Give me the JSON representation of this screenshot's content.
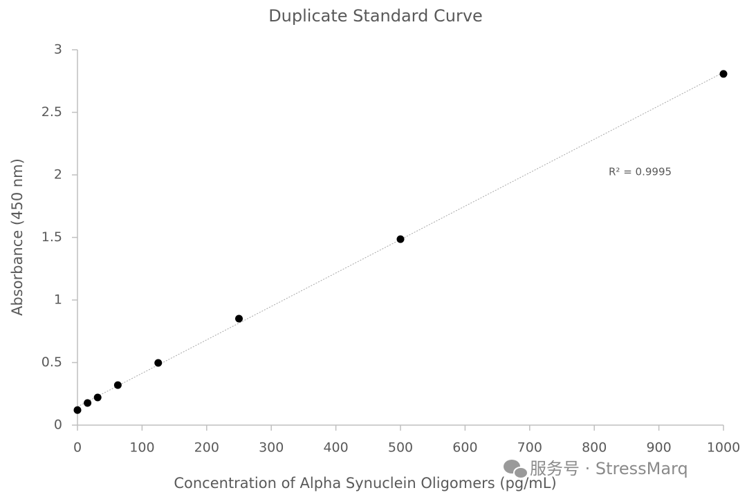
{
  "chart_data": {
    "type": "scatter",
    "title": "Duplicate Standard Curve",
    "x_label": "Concentration of Alpha Synuclein Oligomers (pg/mL)",
    "y_label": "Absorbance (450 nm)",
    "annotation": "R² = 0.9995",
    "watermark": "服务号 · StressMarq",
    "x": [
      0,
      15.625,
      31.25,
      62.5,
      125,
      250,
      500,
      1000
    ],
    "values": [
      0.12,
      0.177,
      0.221,
      0.32,
      0.497,
      0.851,
      1.486,
      2.807
    ],
    "color": "#000000",
    "trendline": true,
    "xlim": [
      0,
      1000
    ],
    "xticks": [
      0,
      100,
      200,
      300,
      400,
      500,
      600,
      700,
      800,
      900,
      1000
    ],
    "ylim": [
      0,
      3
    ],
    "yticks": [
      0,
      0.5,
      1,
      1.5,
      2,
      2.5,
      3
    ]
  }
}
